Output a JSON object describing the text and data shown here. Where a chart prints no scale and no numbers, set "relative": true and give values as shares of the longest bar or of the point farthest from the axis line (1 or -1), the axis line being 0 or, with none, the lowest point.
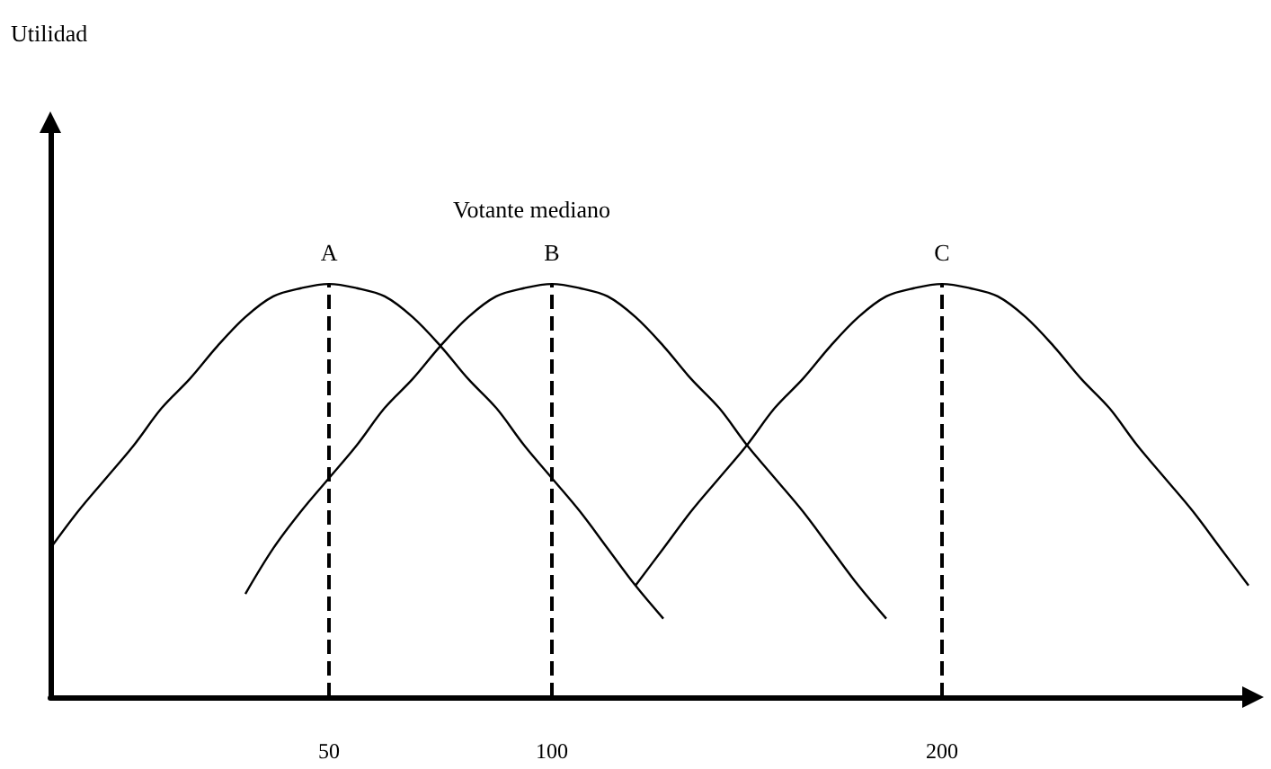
{
  "chart_data": {
    "type": "line",
    "relative": true,
    "tick_labels": "x",
    "grid": false,
    "legend": false,
    "marker": "none",
    "line_style": "solid",
    "categories": [
      null,
      null,
      null,
      null,
      null,
      null,
      null,
      null,
      null,
      null,
      "50",
      null,
      null,
      null,
      null,
      null,
      null,
      null,
      "100",
      null,
      null,
      null,
      null,
      null,
      null,
      null,
      null,
      null,
      null,
      null,
      null,
      null,
      "200",
      null,
      null,
      null,
      null,
      null,
      null,
      null,
      null,
      null,
      null,
      null
    ],
    "series": [
      {
        "name": "A",
        "color": "#000000",
        "values": [
          0.36,
          0.45,
          0.53,
          0.61,
          0.7,
          0.77,
          0.85,
          0.92,
          0.97,
          0.99,
          1,
          0.99,
          0.97,
          0.92,
          0.85,
          0.77,
          0.7,
          0.61,
          0.53,
          0.45,
          0.36,
          0.27,
          0.19,
          null,
          null,
          null,
          null,
          null,
          null,
          null,
          null,
          null,
          null,
          null,
          null,
          null,
          null,
          null,
          null,
          null,
          null,
          null,
          null,
          null
        ]
      },
      {
        "name": "B",
        "color": "#000000",
        "values": [
          null,
          null,
          null,
          null,
          null,
          null,
          null,
          0.25,
          0.36,
          0.45,
          0.53,
          0.61,
          0.7,
          0.77,
          0.85,
          0.92,
          0.97,
          0.99,
          1,
          0.99,
          0.97,
          0.92,
          0.85,
          0.77,
          0.7,
          0.61,
          0.53,
          0.45,
          0.36,
          0.27,
          0.19,
          null,
          null,
          null,
          null,
          null,
          null,
          null,
          null,
          null,
          null,
          null,
          null,
          null
        ]
      },
      {
        "name": "C",
        "color": "#000000",
        "values": [
          null,
          null,
          null,
          null,
          null,
          null,
          null,
          null,
          null,
          null,
          null,
          null,
          null,
          null,
          null,
          null,
          null,
          null,
          null,
          null,
          null,
          0.27,
          0.36,
          0.45,
          0.53,
          0.61,
          0.7,
          0.77,
          0.85,
          0.92,
          0.97,
          0.99,
          1,
          0.99,
          0.97,
          0.92,
          0.85,
          0.77,
          0.7,
          0.61,
          0.53,
          0.45,
          0.36,
          0.27
        ]
      }
    ],
    "ref_lines": [
      {
        "axis": "x",
        "value": "50",
        "color": "#000000",
        "line_style": "dashed"
      },
      {
        "axis": "x",
        "value": "100",
        "color": "#000000",
        "line_style": "dashed"
      },
      {
        "axis": "x",
        "value": "200",
        "color": "#000000",
        "line_style": "dashed"
      }
    ],
    "annotations": [
      "Utilidad",
      "Votante mediano"
    ]
  }
}
